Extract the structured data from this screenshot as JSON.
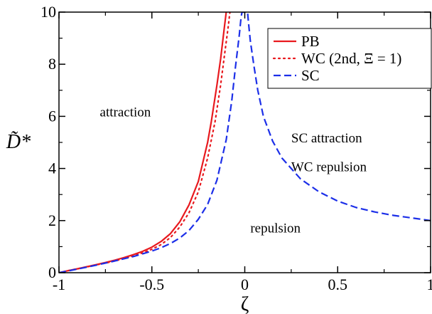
{
  "chart_data": {
    "type": "line",
    "xlabel": "ζ",
    "ylabel": "D̃*",
    "xlim": [
      -1,
      1
    ],
    "ylim": [
      0,
      10
    ],
    "x_ticks": [
      -1,
      -0.5,
      0,
      0.5,
      1
    ],
    "x_tick_labels": [
      "-1",
      "-0.5",
      "0",
      "0.5",
      "1"
    ],
    "y_ticks": [
      0,
      2,
      4,
      6,
      8,
      10
    ],
    "y_tick_labels": [
      "0",
      "2",
      "4",
      "6",
      "8",
      "10"
    ],
    "grid": false,
    "legend_position": "top-right",
    "series": [
      {
        "name": "PB",
        "color": "#e8191e",
        "style": "solid",
        "x": [
          -1,
          -0.95,
          -0.9,
          -0.85,
          -0.8,
          -0.75,
          -0.7,
          -0.65,
          -0.6,
          -0.55,
          -0.5,
          -0.45,
          -0.4,
          -0.35,
          -0.3,
          -0.25,
          -0.2,
          -0.18,
          -0.15,
          -0.13,
          -0.12,
          -0.11,
          -0.1
        ],
        "y": [
          0,
          0.08,
          0.15,
          0.23,
          0.31,
          0.39,
          0.48,
          0.58,
          0.69,
          0.82,
          0.98,
          1.2,
          1.5,
          1.95,
          2.6,
          3.5,
          5.0,
          5.8,
          7.2,
          8.2,
          8.8,
          9.4,
          10
        ]
      },
      {
        "name": "WC (2nd, Ξ = 1)",
        "color": "#e8191e",
        "style": "dotted",
        "x": [
          -1,
          -0.95,
          -0.9,
          -0.85,
          -0.8,
          -0.75,
          -0.7,
          -0.65,
          -0.6,
          -0.55,
          -0.5,
          -0.45,
          -0.4,
          -0.35,
          -0.3,
          -0.25,
          -0.2,
          -0.16,
          -0.13,
          -0.11,
          -0.09,
          -0.08
        ],
        "y": [
          0,
          0.08,
          0.15,
          0.22,
          0.3,
          0.37,
          0.45,
          0.54,
          0.64,
          0.76,
          0.9,
          1.08,
          1.35,
          1.75,
          2.3,
          3.1,
          4.4,
          5.8,
          7.2,
          8.3,
          9.4,
          10
        ]
      },
      {
        "name": "SC",
        "color": "#1c2fe8",
        "style": "dashed",
        "x": [
          -1,
          -0.9,
          -0.8,
          -0.7,
          -0.6,
          -0.5,
          -0.45,
          -0.4,
          -0.35,
          -0.3,
          -0.25,
          -0.2,
          -0.15,
          -0.1,
          -0.07,
          -0.05,
          -0.03,
          -0.02,
          -0.015,
          0.015,
          0.02,
          0.03,
          0.05,
          0.07,
          0.1,
          0.15,
          0.2,
          0.3,
          0.4,
          0.5,
          0.6,
          0.7,
          0.8,
          0.9,
          1.0
        ],
        "y": [
          0,
          0.14,
          0.29,
          0.45,
          0.62,
          0.83,
          0.96,
          1.12,
          1.33,
          1.62,
          2.05,
          2.62,
          3.55,
          5.1,
          6.6,
          7.9,
          9.1,
          9.8,
          10,
          10,
          9.6,
          8.9,
          7.9,
          7.0,
          6.0,
          5.05,
          4.4,
          3.6,
          3.1,
          2.75,
          2.5,
          2.33,
          2.2,
          2.1,
          2.0
        ]
      }
    ],
    "annotations": [
      {
        "text": "attraction",
        "x": -0.78,
        "y": 6.0
      },
      {
        "text": "SC attraction",
        "x": 0.25,
        "y": 5.0
      },
      {
        "text": "WC repulsion",
        "x": 0.25,
        "y": 3.9
      },
      {
        "text": "repulsion",
        "x": 0.03,
        "y": 1.55
      }
    ]
  }
}
